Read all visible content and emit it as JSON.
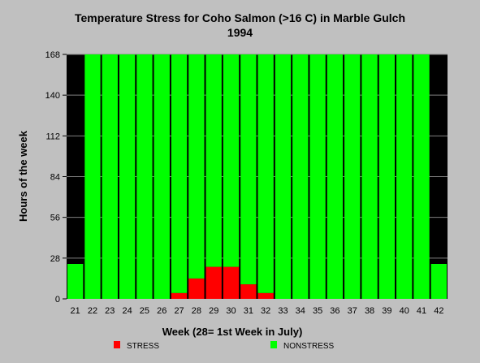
{
  "chart_data": {
    "type": "bar",
    "stacked": true,
    "title": "Temperature Stress for Coho Salmon (>16 C) in Marble Gulch",
    "subtitle": "1994",
    "xlabel": "Week (28= 1st Week in July)",
    "ylabel": "Hours of the week",
    "ylim": [
      0,
      168
    ],
    "yticks": [
      0,
      28,
      56,
      84,
      112,
      140,
      168
    ],
    "grid": "horizontal",
    "legend_position": "bottom",
    "categories": [
      "21",
      "22",
      "23",
      "24",
      "25",
      "26",
      "27",
      "28",
      "29",
      "30",
      "31",
      "32",
      "33",
      "34",
      "35",
      "36",
      "37",
      "38",
      "39",
      "40",
      "41",
      "42"
    ],
    "series": [
      {
        "name": "STRESS",
        "color": "#ff0000",
        "values": [
          0,
          0,
          0,
          0,
          0,
          0,
          4,
          14,
          22,
          22,
          10,
          4,
          0,
          0,
          0,
          0,
          0,
          0,
          0,
          0,
          0,
          0
        ]
      },
      {
        "name": "NONSTRESS",
        "color": "#00ff00",
        "values": [
          24,
          168,
          168,
          168,
          168,
          168,
          164,
          154,
          146,
          146,
          158,
          164,
          168,
          168,
          168,
          168,
          168,
          168,
          168,
          168,
          168,
          24
        ]
      }
    ]
  }
}
